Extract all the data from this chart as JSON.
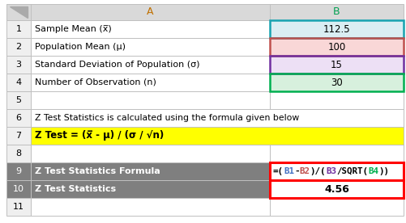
{
  "col_header_A": "A",
  "col_header_B": "B",
  "rows": [
    {
      "num": "1",
      "label": "Sample Mean (x̅)",
      "value": "112.5",
      "bg_B": "#daeef3",
      "border_B": "#17a3b0"
    },
    {
      "num": "2",
      "label": "Population Mean (μ)",
      "value": "100",
      "bg_B": "#f9d7d7",
      "border_B": "#c0504d"
    },
    {
      "num": "3",
      "label": "Standard Deviation of Population (σ)",
      "value": "15",
      "bg_B": "#ede0f5",
      "border_B": "#7030a0"
    },
    {
      "num": "4",
      "label": "Number of Observation (n)",
      "value": "30",
      "bg_B": "#d7f0dd",
      "border_B": "#00b050"
    }
  ],
  "row6_label": "Z Test Statistics is calculated using the formula given below",
  "row7_formula": "Z Test = (x̅ - μ) / (σ / √n)",
  "row9_label": "Z Test Statistics Formula",
  "row9_formula_parts": [
    {
      "text": "=(",
      "color": "#000000"
    },
    {
      "text": "B1",
      "color": "#4472c4"
    },
    {
      "text": "-",
      "color": "#000000"
    },
    {
      "text": "B2",
      "color": "#c0504d"
    },
    {
      "text": ")/(",
      "color": "#000000"
    },
    {
      "text": "B3",
      "color": "#7030a0"
    },
    {
      "text": "/SQRT(",
      "color": "#000000"
    },
    {
      "text": "B4",
      "color": "#00b050"
    },
    {
      "text": "))",
      "color": "#000000"
    }
  ],
  "row10_label": "Z Test Statistics",
  "row10_value": "4.56",
  "header_bg": "#d9d9d9",
  "row_num_bg": "#efefef",
  "dark_row_bg": "#7f7f7f",
  "dark_row_fg": "#ffffff",
  "yellow_bg": "#ffff00",
  "formula_border": "#ff0000",
  "grid_color": "#c0c0c0",
  "fig_bg": "#ffffff",
  "col_A_header_color": "#c07000",
  "col_B_header_color": "#00a050"
}
